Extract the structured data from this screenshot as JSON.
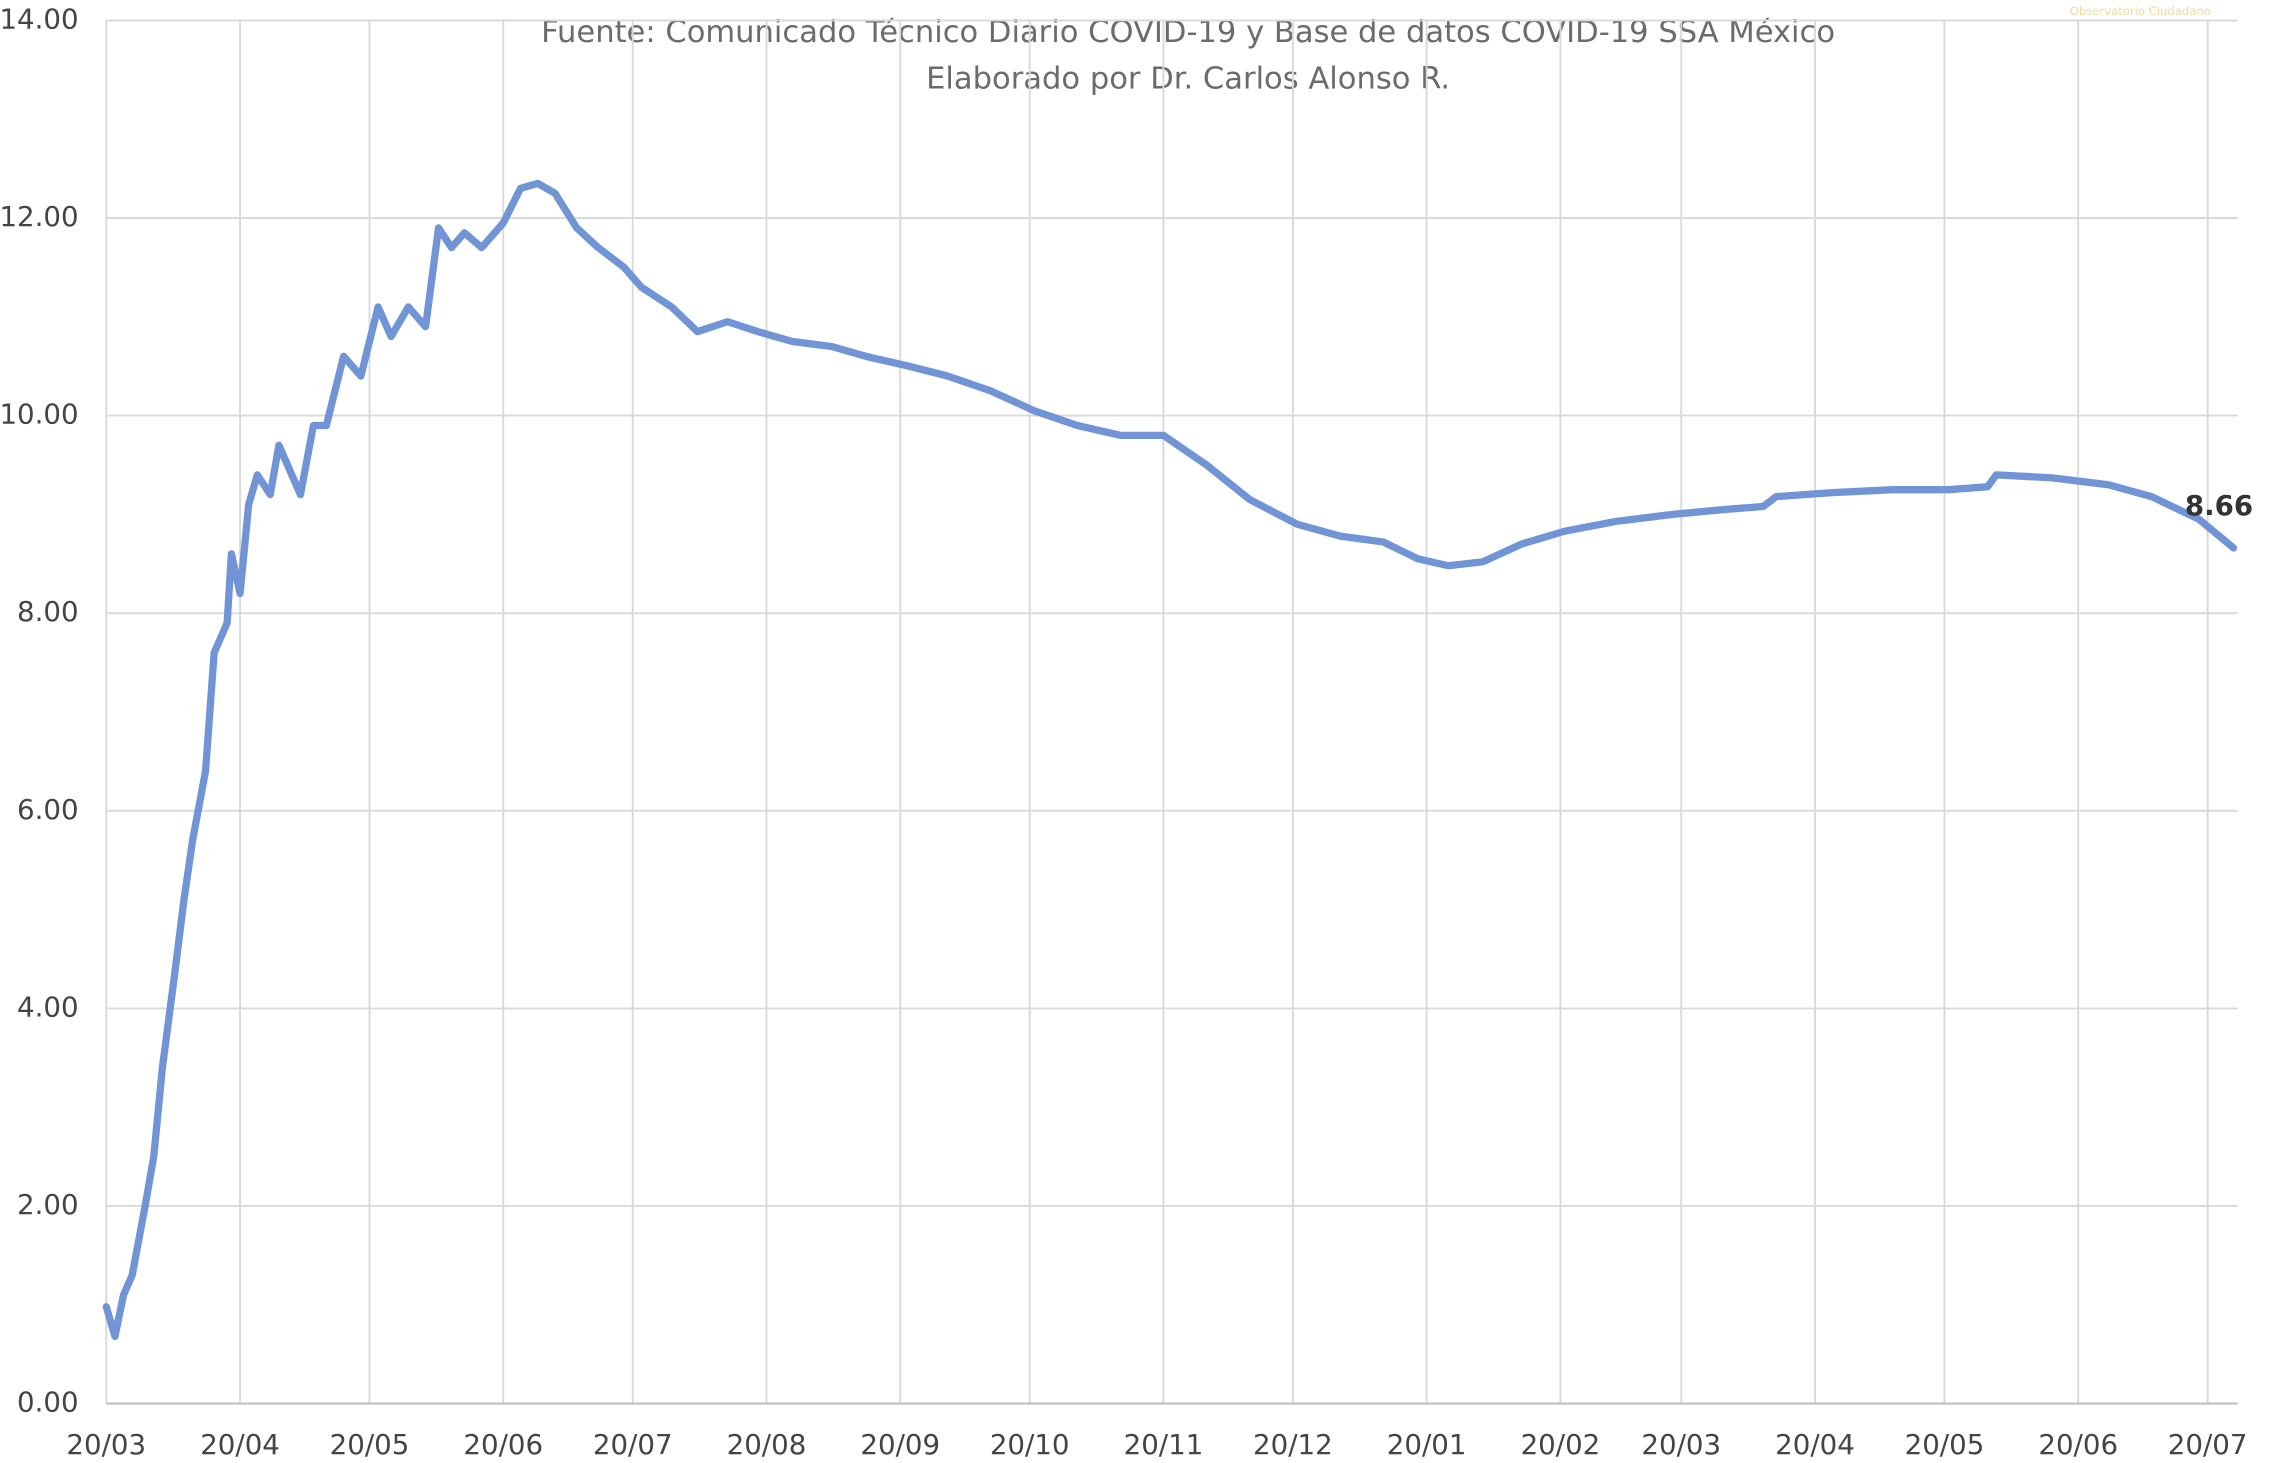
{
  "chart_data": {
    "type": "line",
    "subtitle": [
      "Fuente: Comunicado Técnico Diario COVID-19 y Base de datos COVID-19 SSA México",
      "Elaborado por Dr. Carlos Alonso R."
    ],
    "logo_text": "Observatorio Ciudadano",
    "x": [
      0,
      2,
      4,
      6,
      9,
      11,
      13,
      16,
      18,
      20,
      23,
      25,
      28,
      29,
      31,
      33,
      35,
      38,
      40,
      45,
      48,
      51,
      55,
      59,
      63,
      66,
      70,
      74,
      77,
      80,
      83,
      87,
      92,
      96,
      100,
      104,
      109,
      114,
      120,
      124,
      131,
      137,
      144,
      151,
      159,
      168,
      176,
      186,
      195,
      205,
      215,
      225,
      235,
      245,
      255,
      265,
      276,
      286,
      296,
      304,
      311,
      319,
      328,
      338,
      350,
      363,
      375,
      384,
      387,
      400,
      414,
      427,
      436,
      438,
      451,
      464,
      474,
      485,
      493
    ],
    "series": [
      {
        "color": "#7094d6",
        "values": [
          0.98,
          0.68,
          1.1,
          1.3,
          2.0,
          2.5,
          3.4,
          4.4,
          5.1,
          5.7,
          6.4,
          7.6,
          7.9,
          8.6,
          8.2,
          9.1,
          9.4,
          9.2,
          9.7,
          9.2,
          9.9,
          9.9,
          10.6,
          10.4,
          11.1,
          10.8,
          11.1,
          10.9,
          11.9,
          11.7,
          11.85,
          11.7,
          11.95,
          12.3,
          12.35,
          12.25,
          11.9,
          11.7,
          11.5,
          11.3,
          11.1,
          10.85,
          10.95,
          10.85,
          10.75,
          10.7,
          10.6,
          10.5,
          10.4,
          10.25,
          10.05,
          9.9,
          9.8,
          9.8,
          9.5,
          9.15,
          8.9,
          8.78,
          8.72,
          8.55,
          8.48,
          8.52,
          8.7,
          8.83,
          8.93,
          9.0,
          9.05,
          9.08,
          9.18,
          9.22,
          9.25,
          9.25,
          9.28,
          9.4,
          9.37,
          9.3,
          9.18,
          8.95,
          8.66
        ],
        "value_labels": [
          null,
          null,
          null,
          null,
          null,
          null,
          null,
          null,
          null,
          null,
          null,
          null,
          null,
          null,
          null,
          null,
          null,
          null,
          null,
          null,
          null,
          null,
          null,
          null,
          null,
          null,
          null,
          null,
          null,
          null,
          null,
          null,
          null,
          null,
          null,
          null,
          null,
          null,
          null,
          null,
          null,
          null,
          null,
          null,
          null,
          null,
          null,
          null,
          null,
          null,
          null,
          null,
          null,
          null,
          null,
          null,
          null,
          null,
          null,
          null,
          null,
          null,
          null,
          null,
          null,
          null,
          null,
          null,
          null,
          null,
          null,
          null,
          null,
          null,
          null,
          null,
          null,
          null,
          "8.66"
        ]
      }
    ],
    "xlim": [
      0,
      494
    ],
    "xticks": [
      {
        "value": 0,
        "label": "20/03"
      },
      {
        "value": 31,
        "label": "20/04"
      },
      {
        "value": 61,
        "label": "20/05"
      },
      {
        "value": 92,
        "label": "20/06"
      },
      {
        "value": 122,
        "label": "20/07"
      },
      {
        "value": 153,
        "label": "20/08"
      },
      {
        "value": 184,
        "label": "20/09"
      },
      {
        "value": 214,
        "label": "20/10"
      },
      {
        "value": 245,
        "label": "20/11"
      },
      {
        "value": 275,
        "label": "20/12"
      },
      {
        "value": 306,
        "label": "20/01"
      },
      {
        "value": 337,
        "label": "20/02"
      },
      {
        "value": 365,
        "label": "20/03"
      },
      {
        "value": 396,
        "label": "20/04"
      },
      {
        "value": 426,
        "label": "20/05"
      },
      {
        "value": 457,
        "label": "20/06"
      },
      {
        "value": 487,
        "label": "20/07"
      }
    ],
    "ylim": [
      0,
      14
    ],
    "yticks": [
      {
        "value": 0,
        "label": "0.00"
      },
      {
        "value": 2,
        "label": "2.00"
      },
      {
        "value": 4,
        "label": "4.00"
      },
      {
        "value": 6,
        "label": "6.00"
      },
      {
        "value": 8,
        "label": "8.00"
      },
      {
        "value": 10,
        "label": "10.00"
      },
      {
        "value": 12,
        "label": "12.00"
      },
      {
        "value": 14,
        "label": "14.00"
      }
    ],
    "grid": true
  }
}
